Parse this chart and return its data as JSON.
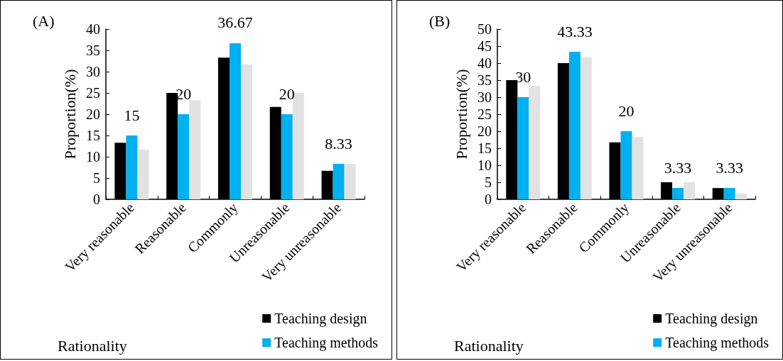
{
  "chart_data": [
    {
      "type": "bar",
      "title": "(A)",
      "xlabel": "Rationality",
      "ylabel": "Proportion(%)",
      "categories": [
        "Very reasonable",
        "Reasonable",
        "Commonly",
        "Unreasonable",
        "Very unreasonable"
      ],
      "ylim": [
        0,
        40
      ],
      "yticks": [
        0,
        5,
        10,
        15,
        20,
        25,
        30,
        35,
        40
      ],
      "grid": false,
      "legend": "bottom right",
      "series": [
        {
          "name": "Teaching design",
          "color": "#000000",
          "values": [
            13.3,
            25,
            33.3,
            21.7,
            6.7
          ]
        },
        {
          "name": "Teaching methods",
          "color": "#00b0f0",
          "values": [
            15,
            20,
            36.67,
            20,
            8.33
          ],
          "value_labels": [
            "15",
            "20",
            "36.67",
            "20",
            "8.33"
          ]
        },
        {
          "color": "#e2e2e2",
          "values": [
            11.7,
            23.3,
            31.7,
            25,
            8.3
          ]
        }
      ]
    },
    {
      "type": "bar",
      "title": "(B)",
      "xlabel": "Rationality",
      "ylabel": "Proportion(%)",
      "categories": [
        "Very reasonable",
        "Reasonable",
        "Commonly",
        "Unreasonable",
        "Very unreasonable"
      ],
      "ylim": [
        0,
        50
      ],
      "yticks": [
        0,
        5,
        10,
        15,
        20,
        25,
        30,
        35,
        40,
        45,
        50
      ],
      "grid": false,
      "legend": "bottom right",
      "series": [
        {
          "name": "Teaching design",
          "color": "#000000",
          "values": [
            35,
            40,
            16.7,
            5,
            3.3
          ]
        },
        {
          "name": "Teaching methods",
          "color": "#00b0f0",
          "values": [
            30,
            43.33,
            20,
            3.33,
            3.33
          ],
          "value_labels": [
            "30",
            "43.33",
            "20",
            "3.33",
            "3.33"
          ]
        },
        {
          "color": "#e2e2e2",
          "values": [
            33.3,
            41.7,
            18.3,
            5,
            1.7
          ]
        }
      ]
    }
  ]
}
